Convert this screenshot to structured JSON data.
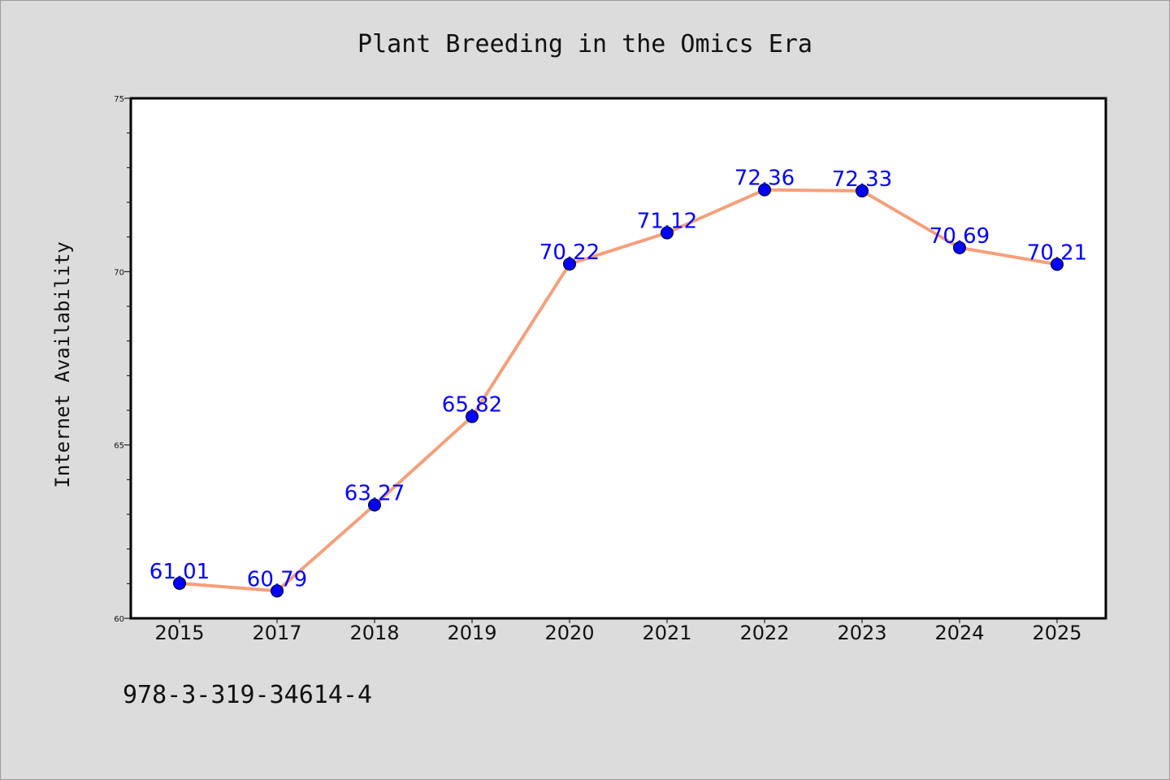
{
  "chart_data": {
    "type": "line",
    "title": "Plant Breeding in the Omics Era",
    "xlabel": "",
    "ylabel": "Internet Availability",
    "categories": [
      "2015",
      "2017",
      "2018",
      "2019",
      "2020",
      "2021",
      "2022",
      "2023",
      "2024",
      "2025"
    ],
    "series": [
      {
        "values": [
          61.01,
          60.79,
          63.27,
          65.82,
          70.22,
          71.12,
          72.36,
          72.33,
          70.69,
          70.21
        ],
        "data_labels": [
          "61.01",
          "60.79",
          "63.27",
          "65.82",
          "70.22",
          "71.12",
          "72.36",
          "72.33",
          "70.69",
          "70.21"
        ]
      }
    ],
    "ylim": [
      60,
      75
    ],
    "yticks": [
      60,
      65,
      70,
      75
    ],
    "ytick_labels": [
      "60",
      "65",
      "70",
      "75"
    ],
    "grid": false,
    "legend": "none"
  },
  "footer": {
    "text": "978-3-319-34614-4"
  },
  "colors": {
    "background": "#dcdcdc",
    "plot_background": "#ffffff",
    "line": "#f4a07a",
    "marker": "#0000ff",
    "data_label": "#0000ff"
  }
}
